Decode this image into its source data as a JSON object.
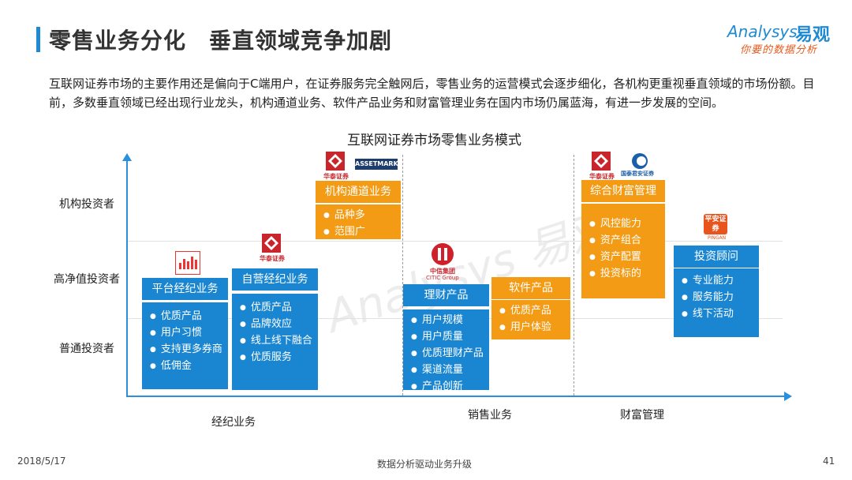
{
  "header": {
    "title": "零售业务分化　垂直领域竞争加剧",
    "logo_en": "Analysys",
    "logo_cn": "易观",
    "logo_tagline": "你要的数据分析"
  },
  "intro": "互联网证券市场的主要作用还是偏向于C端用户，在证券服务完全触网后，零售业务的运营模式会逐步细化，各机构更重视垂直领域的市场份额。目前，多数垂直领域已经出现行业龙头，机构通道业务、软件产品业务和财富管理业务在国内市场仍属蓝海，有进一步发展的空间。",
  "diagram": {
    "title": "互联网证券市场零售业务模式",
    "y_labels": [
      "机构投资者",
      "高净值投资者",
      "普通投资者"
    ],
    "x_labels": [
      "经纪业务",
      "销售业务",
      "财富管理"
    ],
    "boxes": {
      "platform": {
        "title": "平台经纪业务",
        "items": [
          "优质产品",
          "用户习惯",
          "支持更多券商",
          "低佣金"
        ]
      },
      "self_broker": {
        "title": "自营经纪业务",
        "items": [
          "优质产品",
          "品牌效应",
          "线上线下融合",
          "优质服务"
        ]
      },
      "institution": {
        "title": "机构通道业务",
        "items": [
          "品种多",
          "范围广"
        ]
      },
      "wealth_product": {
        "title": "理财产品",
        "items": [
          "用户规模",
          "用户质量",
          "优质理财产品",
          "渠道流量",
          "产品创新"
        ]
      },
      "software": {
        "title": "软件产品",
        "items": [
          "优质产品",
          "用户体验"
        ]
      },
      "wealth_mgmt": {
        "title": "综合财富管理",
        "items": [
          "风控能力",
          "资产组合",
          "资产配置",
          "投资标的"
        ]
      },
      "advisor": {
        "title": "投资顾问",
        "items": [
          "专业能力",
          "服务能力",
          "线下活动"
        ]
      }
    },
    "logos": {
      "htsc": "华泰证券",
      "assetmark": "ASSETMARK",
      "citic": "中信集团",
      "citic_en": "CITIC Group",
      "gtja": "国泰君安证券",
      "pingan": "平安证券",
      "pingan_en": "PINGAN"
    },
    "colors": {
      "blue": "#1a86d2",
      "orange": "#f39b14",
      "axis": "#2c8fdc"
    }
  },
  "footer": {
    "date": "2018/5/17",
    "center": "数据分析驱动业务升级",
    "page": "41"
  }
}
